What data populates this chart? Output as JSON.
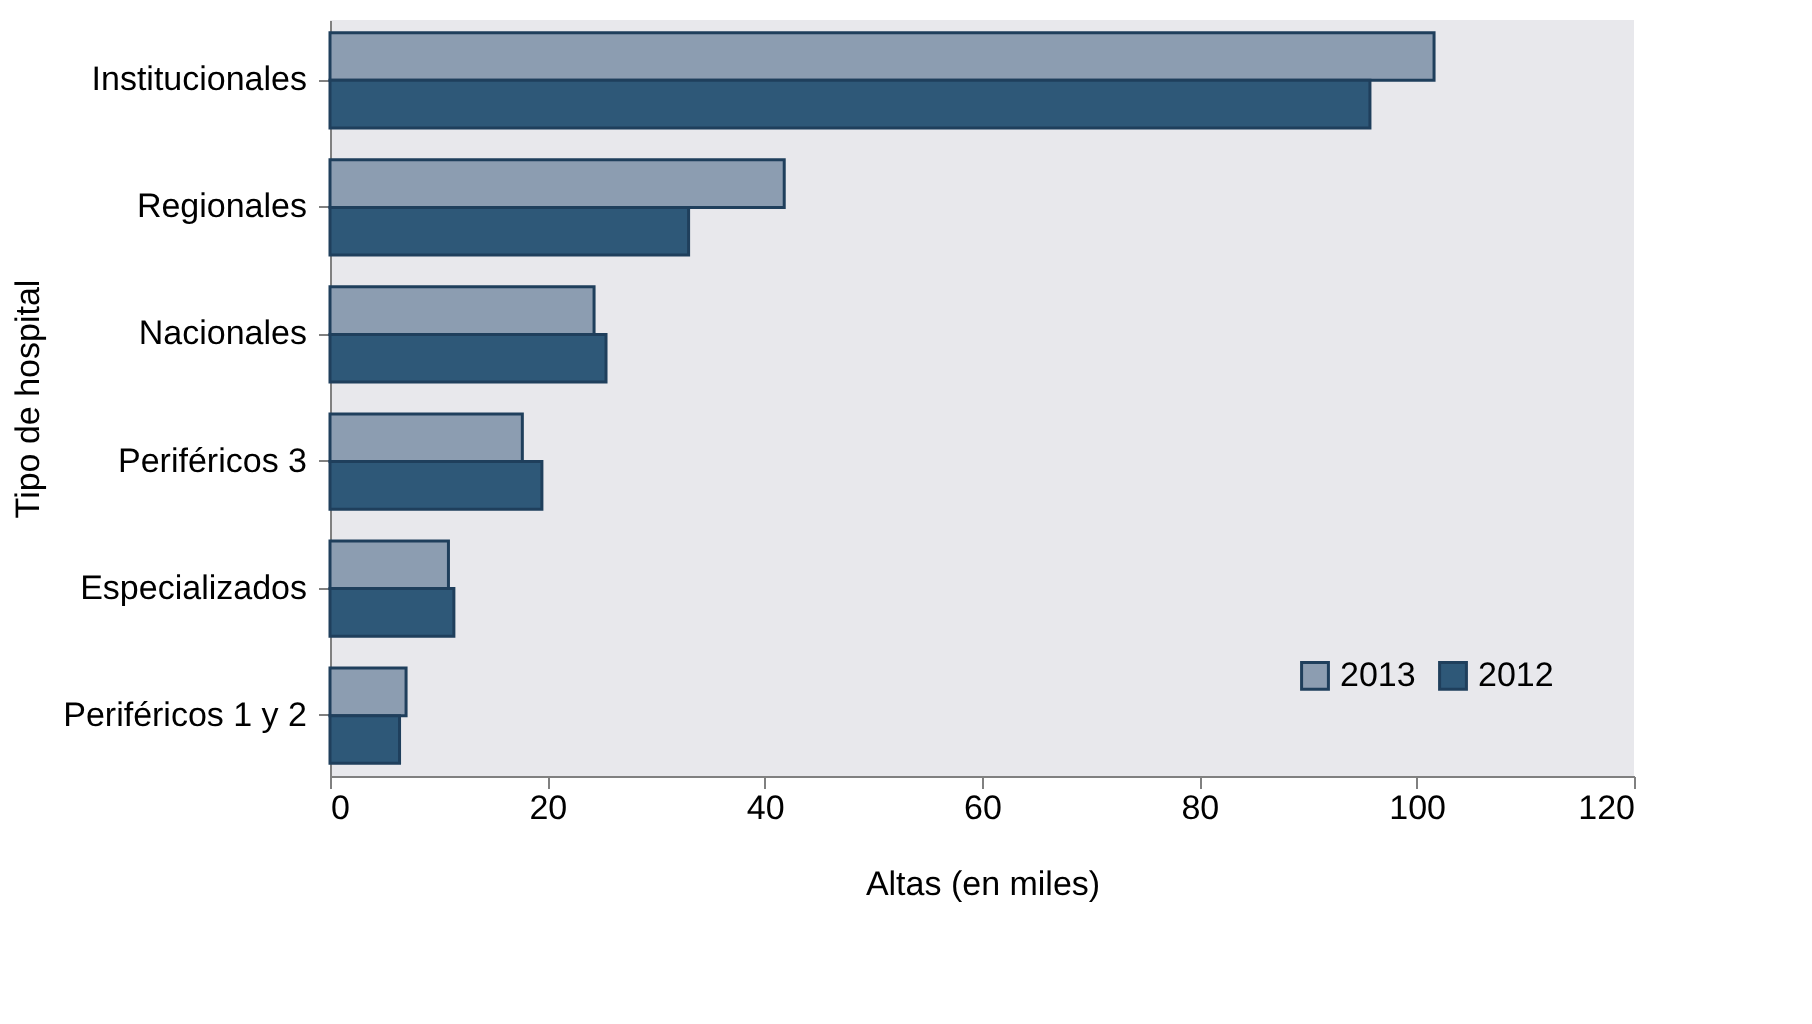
{
  "chart_data": {
    "type": "bar",
    "orientation": "horizontal",
    "xlabel": "Altas (en miles)",
    "ylabel": "Tipo de hospital",
    "categories": [
      "Institucionales",
      "Regionales",
      "Nacionales",
      "Periféricos 3",
      "Especializados",
      "Periféricos 1 y 2"
    ],
    "series": [
      {
        "name": "2013",
        "color": "#8c9db1",
        "values": [
          101.6,
          41.8,
          24.3,
          17.7,
          10.9,
          7.0
        ]
      },
      {
        "name": "2012",
        "color": "#2e5878",
        "values": [
          95.7,
          33.0,
          25.4,
          19.5,
          11.4,
          6.4
        ]
      }
    ],
    "xlim": [
      0,
      120
    ],
    "xticks": [
      0,
      20,
      40,
      60,
      80,
      100,
      120
    ],
    "grid": false,
    "legend": "bottom right"
  }
}
